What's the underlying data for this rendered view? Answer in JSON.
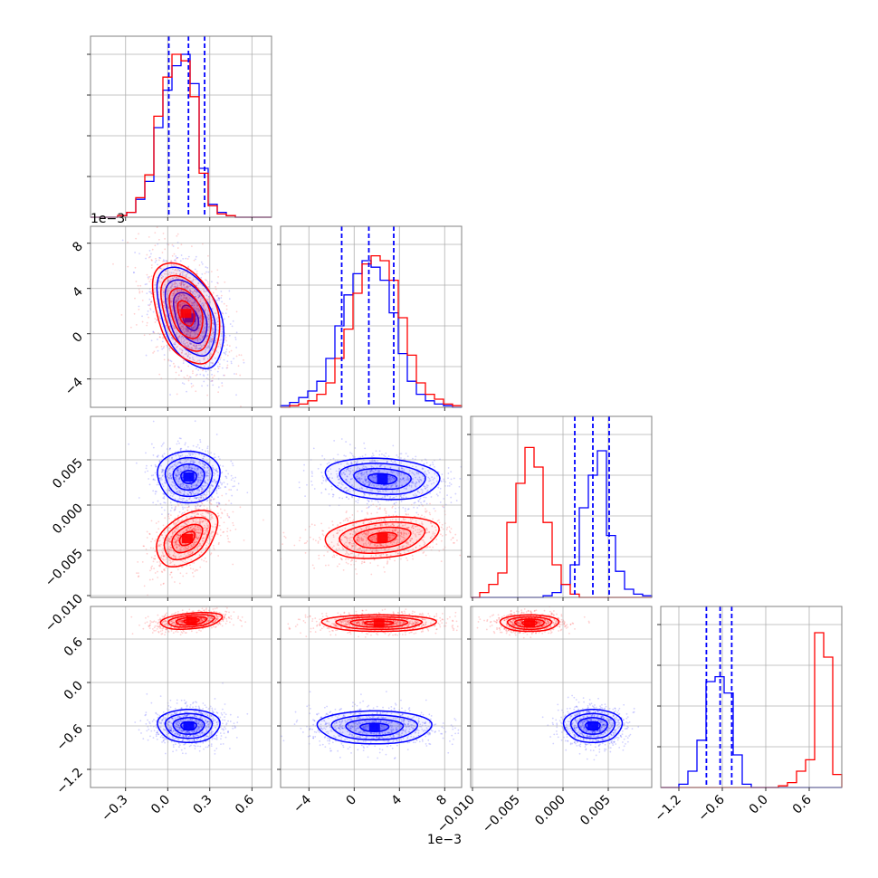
{
  "chart_data": {
    "type": "corner",
    "colors": {
      "series_a": "#0000ff",
      "series_b": "#ff0000",
      "grid": "#b0b0b0",
      "frame": "#808080"
    },
    "grid": true,
    "quantile_lines": "dashed",
    "series": [
      {
        "color": "blue"
      },
      {
        "color": "red"
      }
    ],
    "parameters": [
      {
        "range": [
          -0.55,
          0.74
        ],
        "ticks": [
          -0.3,
          0.0,
          0.3,
          0.6
        ],
        "tick_labels": [
          "−0.3",
          "0.0",
          "0.3",
          "0.6"
        ],
        "offset_text": ""
      },
      {
        "range": [
          -0.0065,
          0.0095
        ],
        "ticks": [
          -0.004,
          0.0,
          0.004,
          0.008
        ],
        "tick_labels": [
          "−4",
          "0",
          "4",
          "8"
        ],
        "offset_text": "1e−3"
      },
      {
        "range": [
          -0.0102,
          0.0098
        ],
        "ticks": [
          -0.01,
          -0.005,
          0.0,
          0.005
        ],
        "tick_labels": [
          "−0.010",
          "−0.005",
          "0.000",
          "0.005"
        ],
        "offset_text": ""
      },
      {
        "range": [
          -1.45,
          1.05
        ],
        "ticks": [
          -1.2,
          -0.6,
          0.0,
          0.6
        ],
        "tick_labels": [
          "−1.2",
          "−0.6",
          "0.0",
          "0.6"
        ],
        "offset_text": ""
      }
    ],
    "marginals": [
      {
        "param": 0,
        "bin_edges": [
          -0.55,
          -0.4855,
          -0.421,
          -0.3565,
          -0.292,
          -0.2275,
          -0.163,
          -0.0985,
          -0.034,
          0.0305,
          0.095,
          0.1595,
          0.224,
          0.2885,
          0.353,
          0.4175,
          0.482,
          0.5465,
          0.611,
          0.6755,
          0.74
        ],
        "blue": [
          0,
          0,
          0,
          0.01,
          0.03,
          0.11,
          0.22,
          0.55,
          0.78,
          0.93,
          1.0,
          0.82,
          0.3,
          0.08,
          0.03,
          0.01,
          0,
          0,
          0,
          0
        ],
        "red": [
          0,
          0,
          0,
          0.01,
          0.03,
          0.12,
          0.26,
          0.62,
          0.86,
          1.0,
          0.96,
          0.74,
          0.27,
          0.07,
          0.02,
          0.01,
          0,
          0,
          0,
          0
        ],
        "quantiles": [
          0.008,
          0.148,
          0.263
        ]
      },
      {
        "param": 1,
        "bin_edges": [
          -0.0065,
          -0.0057,
          -0.0049,
          -0.0041,
          -0.0033,
          -0.0025,
          -0.0017,
          -0.0009,
          -0.0001,
          0.0007,
          0.0015,
          0.0023,
          0.0031,
          0.0039,
          0.0047,
          0.0055,
          0.0063,
          0.0071,
          0.0079,
          0.0087,
          0.0095
        ],
        "blue": [
          0.01,
          0.03,
          0.06,
          0.1,
          0.16,
          0.3,
          0.5,
          0.69,
          0.82,
          0.9,
          0.86,
          0.78,
          0.58,
          0.33,
          0.16,
          0.08,
          0.04,
          0.02,
          0.01,
          0
        ],
        "red": [
          0,
          0.01,
          0.02,
          0.04,
          0.08,
          0.15,
          0.3,
          0.48,
          0.7,
          0.88,
          0.93,
          0.9,
          0.78,
          0.55,
          0.32,
          0.15,
          0.08,
          0.05,
          0.02,
          0.01
        ],
        "quantiles": [
          -0.0011,
          0.0013,
          0.0035
        ]
      },
      {
        "param": 2,
        "bin_edges": [
          -0.0102,
          -0.0092,
          -0.0082,
          -0.0072,
          -0.0062,
          -0.0052,
          -0.0042,
          -0.0032,
          -0.0022,
          -0.0012,
          -0.0002,
          0.0008,
          0.0018,
          0.0028,
          0.0038,
          0.0048,
          0.0058,
          0.0068,
          0.0078,
          0.0088,
          0.0098
        ],
        "blue": [
          0,
          0,
          0,
          0,
          0,
          0,
          0,
          0,
          0.01,
          0.03,
          0.08,
          0.2,
          0.55,
          0.75,
          0.9,
          0.38,
          0.16,
          0.05,
          0.02,
          0.01
        ],
        "red": [
          0,
          0.03,
          0.08,
          0.15,
          0.46,
          0.7,
          0.92,
          0.8,
          0.46,
          0.2,
          0.08,
          0.02,
          0,
          0,
          0,
          0,
          0,
          0,
          0,
          0
        ],
        "quantiles": [
          0.0013,
          0.0033,
          0.0051
        ]
      },
      {
        "param": 3,
        "bin_edges": [
          -1.45,
          -1.325,
          -1.2,
          -1.075,
          -0.95,
          -0.825,
          -0.7,
          -0.575,
          -0.45,
          -0.325,
          -0.2,
          -0.075,
          0.05,
          0.175,
          0.3,
          0.425,
          0.55,
          0.675,
          0.8,
          0.925,
          1.05
        ],
        "blue": [
          0,
          0,
          0.02,
          0.1,
          0.29,
          0.65,
          0.68,
          0.58,
          0.2,
          0.02,
          0,
          0,
          0,
          0,
          0,
          0,
          0,
          0,
          0,
          0
        ],
        "red": [
          0,
          0,
          0,
          0,
          0,
          0,
          0,
          0,
          0,
          0,
          0,
          0,
          0,
          0.01,
          0.03,
          0.1,
          0.17,
          0.95,
          0.8,
          0.08
        ],
        "quantiles": [
          -0.82,
          -0.63,
          -0.47
        ]
      }
    ],
    "joint": [
      {
        "x": 0,
        "y": 1,
        "blue": {
          "mean": [
            0.16,
            0.0014
          ],
          "sd": [
            0.12,
            0.0023
          ],
          "rho": -0.45
        },
        "red": {
          "mean": [
            0.13,
            0.0018
          ],
          "sd": [
            0.12,
            0.0023
          ],
          "rho": -0.4
        }
      },
      {
        "x": 0,
        "y": 2,
        "blue": {
          "mean": [
            0.15,
            0.0031
          ],
          "sd": [
            0.11,
            0.0015
          ],
          "rho": 0.0
        },
        "red": {
          "mean": [
            0.14,
            -0.0037
          ],
          "sd": [
            0.11,
            0.0016
          ],
          "rho": 0.45
        }
      },
      {
        "x": 1,
        "y": 2,
        "blue": {
          "mean": [
            0.0025,
            0.0029
          ],
          "sd": [
            0.0025,
            0.0012
          ],
          "rho": -0.15
        },
        "red": {
          "mean": [
            0.0025,
            -0.0036
          ],
          "sd": [
            0.0025,
            0.0012
          ],
          "rho": 0.25
        }
      },
      {
        "x": 0,
        "y": 3,
        "blue": {
          "mean": [
            0.15,
            -0.6
          ],
          "sd": [
            0.11,
            0.12
          ],
          "rho": 0.0
        },
        "red": {
          "mean": [
            0.17,
            0.85
          ],
          "sd": [
            0.11,
            0.06
          ],
          "rho": 0.35
        }
      },
      {
        "x": 1,
        "y": 3,
        "blue": {
          "mean": [
            0.0018,
            -0.62
          ],
          "sd": [
            0.0025,
            0.12
          ],
          "rho": 0.0
        },
        "red": {
          "mean": [
            0.0022,
            0.82
          ],
          "sd": [
            0.0025,
            0.06
          ],
          "rho": 0.0
        }
      },
      {
        "x": 2,
        "y": 3,
        "blue": {
          "mean": [
            0.0033,
            -0.6
          ],
          "sd": [
            0.0016,
            0.12
          ],
          "rho": 0.0
        },
        "red": {
          "mean": [
            -0.0037,
            0.82
          ],
          "sd": [
            0.0016,
            0.06
          ],
          "rho": 0.0
        }
      }
    ]
  }
}
